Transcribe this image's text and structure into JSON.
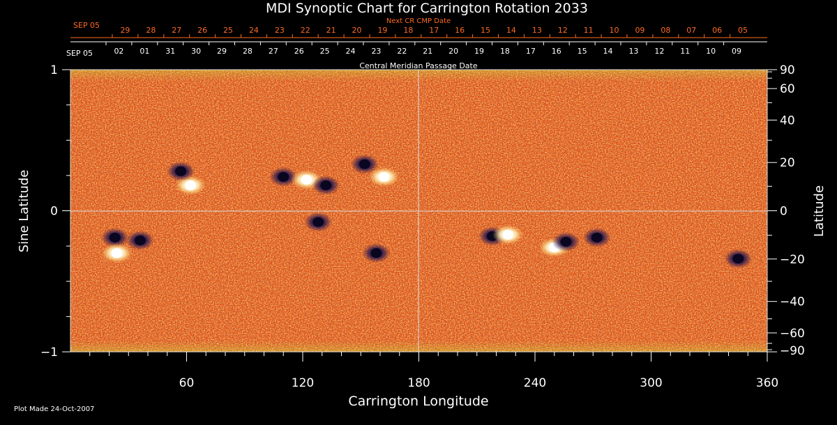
{
  "chart_data": {
    "type": "heatmap",
    "title": "MDI Synoptic Chart for Carrington Rotation 2033",
    "subtitle_top": "Next CR CMP Date",
    "subtitle_mid": "Central Meridian Passage Date",
    "xlabel": "Carrington Longitude",
    "ylabel_left": "Sine Latitude",
    "ylabel_right": "Latitude",
    "footer": "Plot Made 24-Oct-2007",
    "xlim": [
      0,
      360
    ],
    "ylim_sine": [
      -1,
      1
    ],
    "grid": "crosshair at longitude 180 and sine latitude 0",
    "x_ticks": [
      {
        "value": 60,
        "label": "60"
      },
      {
        "value": 120,
        "label": "120"
      },
      {
        "value": 180,
        "label": "180"
      },
      {
        "value": 240,
        "label": "240"
      },
      {
        "value": 300,
        "label": "300"
      },
      {
        "value": 360,
        "label": "360"
      }
    ],
    "y_ticks_left": [
      {
        "value": 1,
        "label": "1"
      },
      {
        "value": 0,
        "label": "0"
      },
      {
        "value": -1,
        "label": "−1"
      }
    ],
    "y_ticks_right": [
      {
        "value": 90,
        "label": "90"
      },
      {
        "value": 60,
        "label": "60"
      },
      {
        "value": 40,
        "label": "40"
      },
      {
        "value": 20,
        "label": "20"
      },
      {
        "value": 0,
        "label": "0"
      },
      {
        "value": -20,
        "label": "−20"
      },
      {
        "value": -40,
        "label": "−40"
      },
      {
        "value": -60,
        "label": "−60"
      },
      {
        "value": -90,
        "label": "−90"
      }
    ],
    "cmp_start_label": "SEP 05",
    "cmp_dates": [
      "02",
      "01",
      "31",
      "30",
      "29",
      "28",
      "27",
      "26",
      "25",
      "24",
      "23",
      "22",
      "21",
      "20",
      "19",
      "18",
      "17",
      "16",
      "15",
      "14",
      "13",
      "12",
      "11",
      "10",
      "09"
    ],
    "next_cmp_start_label": "SEP 05",
    "next_cmp_dates": [
      "29",
      "28",
      "27",
      "26",
      "25",
      "24",
      "23",
      "22",
      "21",
      "20",
      "19",
      "18",
      "17",
      "16",
      "15",
      "14",
      "13",
      "12",
      "11",
      "10",
      "09",
      "08",
      "07",
      "06",
      "05"
    ],
    "active_regions": [
      {
        "lon": 62,
        "sinlat": 0.18,
        "polarity": "positive"
      },
      {
        "lon": 57,
        "sinlat": 0.28,
        "polarity": "negative"
      },
      {
        "lon": 110,
        "sinlat": 0.24,
        "polarity": "negative"
      },
      {
        "lon": 122,
        "sinlat": 0.22,
        "polarity": "positive"
      },
      {
        "lon": 132,
        "sinlat": 0.18,
        "polarity": "negative"
      },
      {
        "lon": 152,
        "sinlat": 0.33,
        "polarity": "negative"
      },
      {
        "lon": 162,
        "sinlat": 0.24,
        "polarity": "positive"
      },
      {
        "lon": 23,
        "sinlat": -0.19,
        "polarity": "negative"
      },
      {
        "lon": 24,
        "sinlat": -0.3,
        "polarity": "positive"
      },
      {
        "lon": 36,
        "sinlat": -0.21,
        "polarity": "negative"
      },
      {
        "lon": 128,
        "sinlat": -0.08,
        "polarity": "negative"
      },
      {
        "lon": 158,
        "sinlat": -0.3,
        "polarity": "negative"
      },
      {
        "lon": 218,
        "sinlat": -0.18,
        "polarity": "negative"
      },
      {
        "lon": 226,
        "sinlat": -0.17,
        "polarity": "positive"
      },
      {
        "lon": 250,
        "sinlat": -0.26,
        "polarity": "positive"
      },
      {
        "lon": 256,
        "sinlat": -0.22,
        "polarity": "negative"
      },
      {
        "lon": 272,
        "sinlat": -0.19,
        "polarity": "negative"
      },
      {
        "lon": 345,
        "sinlat": -0.34,
        "polarity": "negative"
      }
    ],
    "colors": {
      "background": "#000000",
      "field_base": "#e8501a",
      "positive": "#ffffff",
      "negative": "#1a1040",
      "axes": "#ffffff",
      "next_cmp_text": "#ff6a20"
    }
  }
}
